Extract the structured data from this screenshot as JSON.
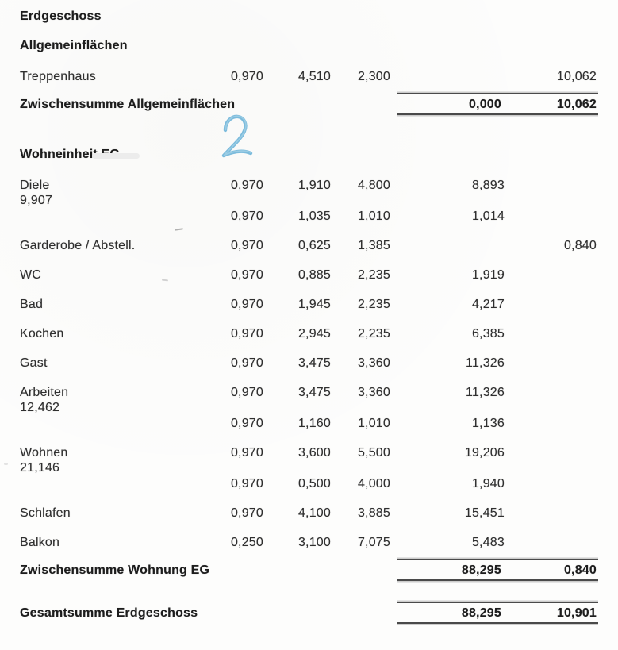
{
  "page_title": "Erdgeschoss",
  "sections": [
    {
      "heading": "Allgemeinflächen",
      "rooms": [
        {
          "label": "Treppenhaus",
          "lines": [
            {
              "c1": "0,970",
              "c2": "4,510",
              "c3": "2,300",
              "c4": "",
              "c5": "10,062"
            }
          ]
        }
      ],
      "subtotal": {
        "label": "Zwischensumme Allgemeinflächen",
        "c4": "0,000",
        "c5": "10,062"
      }
    },
    {
      "heading": "Wohneinheit EG",
      "rooms": [
        {
          "label": "Diele",
          "room_sum": "9,907",
          "lines": [
            {
              "c1": "0,970",
              "c2": "1,910",
              "c3": "4,800",
              "c4": "8,893",
              "c5": ""
            },
            {
              "c1": "0,970",
              "c2": "1,035",
              "c3": "1,010",
              "c4": "1,014",
              "c5": ""
            }
          ]
        },
        {
          "label": "Garderobe / Abstell.",
          "lines": [
            {
              "c1": "0,970",
              "c2": "0,625",
              "c3": "1,385",
              "c4": "",
              "c5": "0,840"
            }
          ]
        },
        {
          "label": "WC",
          "lines": [
            {
              "c1": "0,970",
              "c2": "0,885",
              "c3": "2,235",
              "c4": "1,919",
              "c5": ""
            }
          ]
        },
        {
          "label": "Bad",
          "lines": [
            {
              "c1": "0,970",
              "c2": "1,945",
              "c3": "2,235",
              "c4": "4,217",
              "c5": ""
            }
          ]
        },
        {
          "label": "Kochen",
          "lines": [
            {
              "c1": "0,970",
              "c2": "2,945",
              "c3": "2,235",
              "c4": "6,385",
              "c5": ""
            }
          ]
        },
        {
          "label": "Gast",
          "lines": [
            {
              "c1": "0,970",
              "c2": "3,475",
              "c3": "3,360",
              "c4": "11,326",
              "c5": ""
            }
          ]
        },
        {
          "label": "Arbeiten",
          "room_sum": "12,462",
          "lines": [
            {
              "c1": "0,970",
              "c2": "3,475",
              "c3": "3,360",
              "c4": "11,326",
              "c5": ""
            },
            {
              "c1": "0,970",
              "c2": "1,160",
              "c3": "1,010",
              "c4": "1,136",
              "c5": ""
            }
          ]
        },
        {
          "label": "Wohnen",
          "room_sum": "21,146",
          "lines": [
            {
              "c1": "0,970",
              "c2": "3,600",
              "c3": "5,500",
              "c4": "19,206",
              "c5": ""
            },
            {
              "c1": "0,970",
              "c2": "0,500",
              "c3": "4,000",
              "c4": "1,940",
              "c5": ""
            }
          ]
        },
        {
          "label": "Schlafen",
          "lines": [
            {
              "c1": "0,970",
              "c2": "4,100",
              "c3": "3,885",
              "c4": "15,451",
              "c5": ""
            }
          ]
        },
        {
          "label": "Balkon",
          "lines": [
            {
              "c1": "0,250",
              "c2": "3,100",
              "c3": "7,075",
              "c4": "5,483",
              "c5": ""
            }
          ]
        }
      ],
      "subtotal": {
        "label": "Zwischensumme Wohnung EG",
        "c4": "88,295",
        "c5": "0,840"
      }
    }
  ],
  "grand_total": {
    "label": "Gesamtsumme Erdgeschoss",
    "c4": "88,295",
    "c5": "10,901"
  },
  "annotation": {
    "text": "2",
    "color": "#6db4d8"
  }
}
